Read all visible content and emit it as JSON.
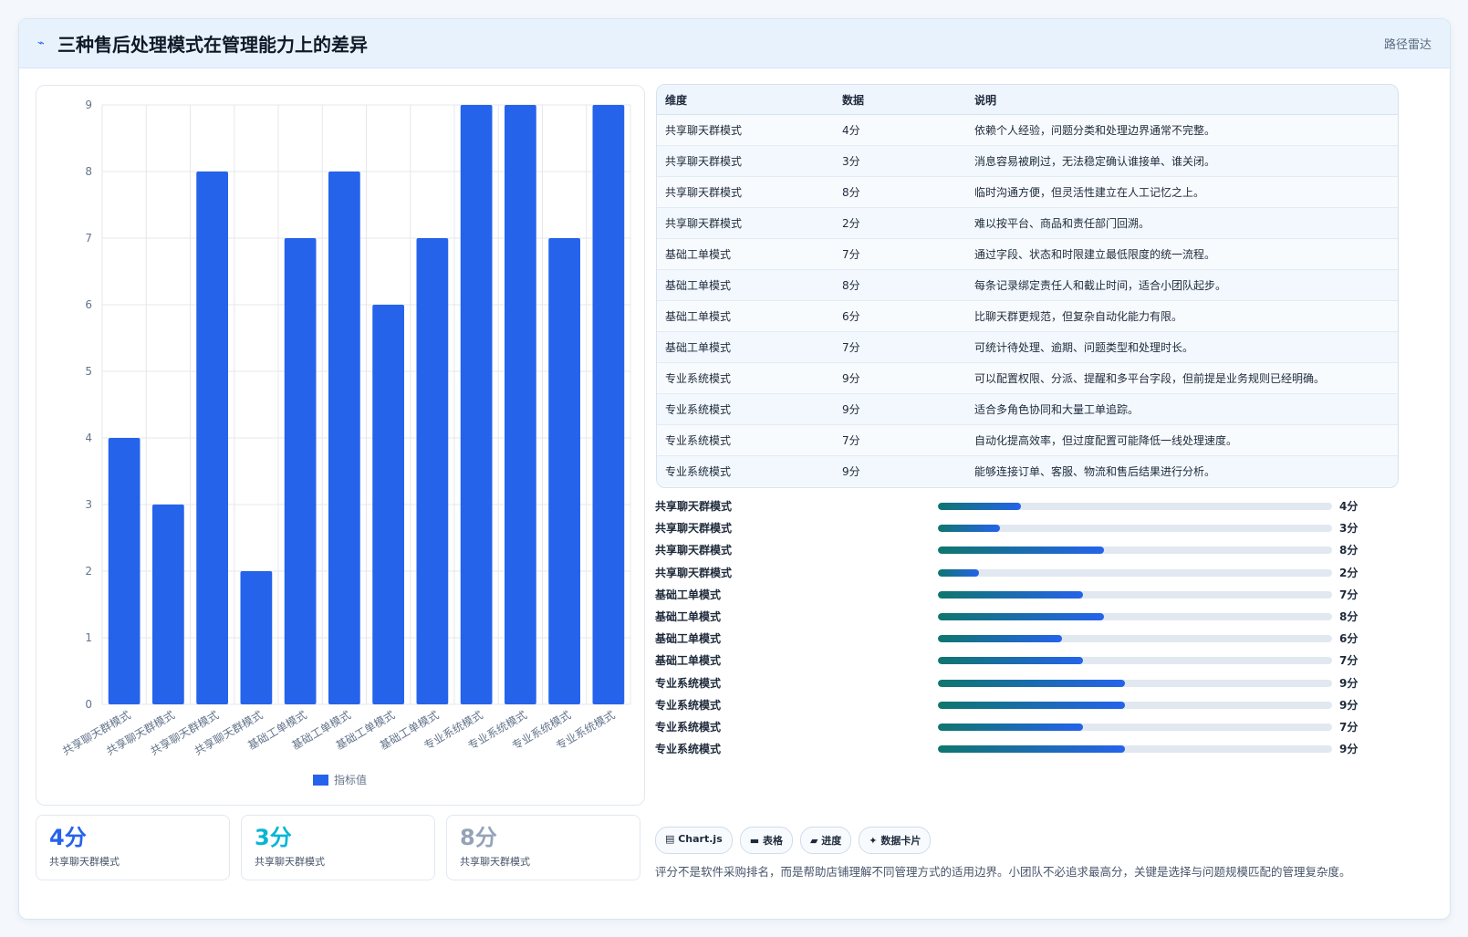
{
  "header": {
    "icon": "chart-line-icon",
    "title": "三种售后处理模式在管理能力上的差异",
    "subtitle": "路径雷达"
  },
  "colors": {
    "bar": "#2563eb",
    "stat_1": "#2563eb",
    "stat_2": "#06b6d4",
    "stat_3": "#94a3b8"
  },
  "chart_data": {
    "type": "bar",
    "categories": [
      "共享聊天群模式",
      "共享聊天群模式",
      "共享聊天群模式",
      "共享聊天群模式",
      "基础工单模式",
      "基础工单模式",
      "基础工单模式",
      "基础工单模式",
      "专业系统模式",
      "专业系统模式",
      "专业系统模式",
      "专业系统模式"
    ],
    "series": [
      {
        "name": "指标值",
        "values": [
          4,
          3,
          8,
          2,
          7,
          8,
          6,
          7,
          9,
          9,
          7,
          9
        ]
      }
    ],
    "ylim": [
      0,
      9
    ],
    "yticks": [
      0,
      1,
      2,
      3,
      4,
      5,
      6,
      7,
      8,
      9
    ],
    "grid": true,
    "legend": "bottom"
  },
  "stats": [
    {
      "value": "4分",
      "label": "共享聊天群模式"
    },
    {
      "value": "3分",
      "label": "共享聊天群模式"
    },
    {
      "value": "8分",
      "label": "共享聊天群模式"
    }
  ],
  "table": {
    "headers": [
      "维度",
      "数据",
      "说明"
    ],
    "rows": [
      [
        "共享聊天群模式",
        "4分",
        "依赖个人经验，问题分类和处理边界通常不完整。"
      ],
      [
        "共享聊天群模式",
        "3分",
        "消息容易被刷过，无法稳定确认谁接单、谁关闭。"
      ],
      [
        "共享聊天群模式",
        "8分",
        "临时沟通方便，但灵活性建立在人工记忆之上。"
      ],
      [
        "共享聊天群模式",
        "2分",
        "难以按平台、商品和责任部门回溯。"
      ],
      [
        "基础工单模式",
        "7分",
        "通过字段、状态和时限建立最低限度的统一流程。"
      ],
      [
        "基础工单模式",
        "8分",
        "每条记录绑定责任人和截止时间，适合小团队起步。"
      ],
      [
        "基础工单模式",
        "6分",
        "比聊天群更规范，但复杂自动化能力有限。"
      ],
      [
        "基础工单模式",
        "7分",
        "可统计待处理、逾期、问题类型和处理时长。"
      ],
      [
        "专业系统模式",
        "9分",
        "可以配置权限、分派、提醒和多平台字段，但前提是业务规则已经明确。"
      ],
      [
        "专业系统模式",
        "9分",
        "适合多角色协同和大量工单追踪。"
      ],
      [
        "专业系统模式",
        "7分",
        "自动化提高效率，但过度配置可能降低一线处理速度。"
      ],
      [
        "专业系统模式",
        "9分",
        "能够连接订单、客服、物流和售后结果进行分析。"
      ]
    ]
  },
  "progress": {
    "max": 19,
    "items": [
      {
        "name": "共享聊天群模式",
        "value": 4,
        "label": "4分"
      },
      {
        "name": "共享聊天群模式",
        "value": 3,
        "label": "3分"
      },
      {
        "name": "共享聊天群模式",
        "value": 8,
        "label": "8分"
      },
      {
        "name": "共享聊天群模式",
        "value": 2,
        "label": "2分"
      },
      {
        "name": "基础工单模式",
        "value": 7,
        "label": "7分"
      },
      {
        "name": "基础工单模式",
        "value": 8,
        "label": "8分"
      },
      {
        "name": "基础工单模式",
        "value": 6,
        "label": "6分"
      },
      {
        "name": "基础工单模式",
        "value": 7,
        "label": "7分"
      },
      {
        "name": "专业系统模式",
        "value": 9,
        "label": "9分"
      },
      {
        "name": "专业系统模式",
        "value": 9,
        "label": "9分"
      },
      {
        "name": "专业系统模式",
        "value": 7,
        "label": "7分"
      },
      {
        "name": "专业系统模式",
        "value": 9,
        "label": "9分"
      }
    ]
  },
  "tags": [
    {
      "icon": "chart-icon",
      "label": "Chart.js"
    },
    {
      "icon": "table-icon",
      "label": "表格"
    },
    {
      "icon": "progress-icon",
      "label": "进度"
    },
    {
      "icon": "sparkle-icon",
      "label": "数据卡片"
    }
  ],
  "note": "评分不是软件采购排名，而是帮助店铺理解不同管理方式的适用边界。小团队不必追求最高分，关键是选择与问题规模匹配的管理复杂度。"
}
